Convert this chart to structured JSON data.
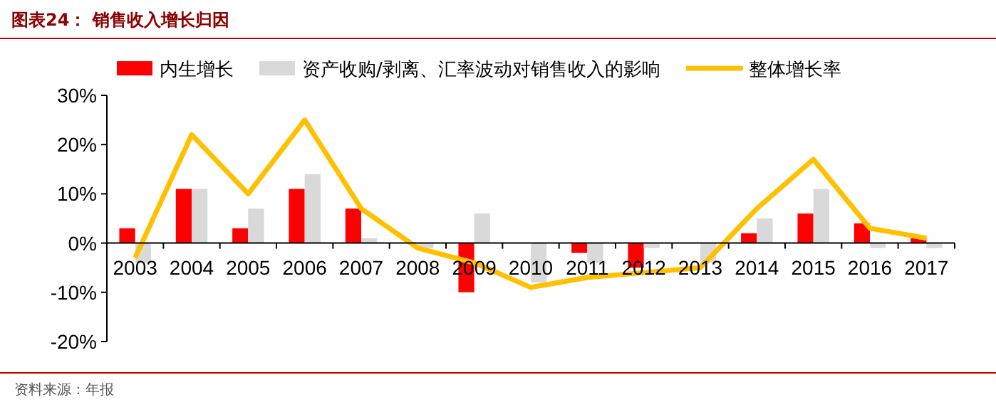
{
  "chart_data": {
    "type": "bar",
    "title": "图表24：  销售收入增长归因",
    "categories": [
      "2003",
      "2004",
      "2005",
      "2006",
      "2007",
      "2008",
      "2009",
      "2010",
      "2011",
      "2012",
      "2013",
      "2014",
      "2015",
      "2016",
      "2017"
    ],
    "series": [
      {
        "name": "内生增长",
        "color": "#ff0000",
        "values": [
          3,
          11,
          3,
          11,
          7,
          0,
          -10,
          0,
          -2,
          -5,
          0,
          2,
          6,
          4,
          1
        ]
      },
      {
        "name": "资产收购/剥离、汇率波动对销售收入的影响",
        "color": "#d9d9d9",
        "values": [
          -4,
          11,
          7,
          14,
          1,
          -1,
          6,
          -8,
          -4,
          -1,
          -4,
          5,
          11,
          -1,
          -1
        ]
      },
      {
        "name": "整体增长率",
        "type": "line",
        "color": "#ffc000",
        "values": [
          -3,
          22,
          10,
          25,
          7,
          -1,
          -4,
          -9,
          -7,
          -6,
          -5,
          7,
          17,
          3,
          1
        ]
      }
    ],
    "ylim": [
      -20,
      30
    ],
    "yticks": [
      {
        "value": -20,
        "label": "-20%"
      },
      {
        "value": -10,
        "label": "-10%"
      },
      {
        "value": 0,
        "label": "0%"
      },
      {
        "value": 10,
        "label": "10%"
      },
      {
        "value": 20,
        "label": "20%"
      },
      {
        "value": 30,
        "label": "30%"
      }
    ],
    "legend": "top",
    "grid": false,
    "annotations": [
      "资料来源：年报"
    ]
  }
}
